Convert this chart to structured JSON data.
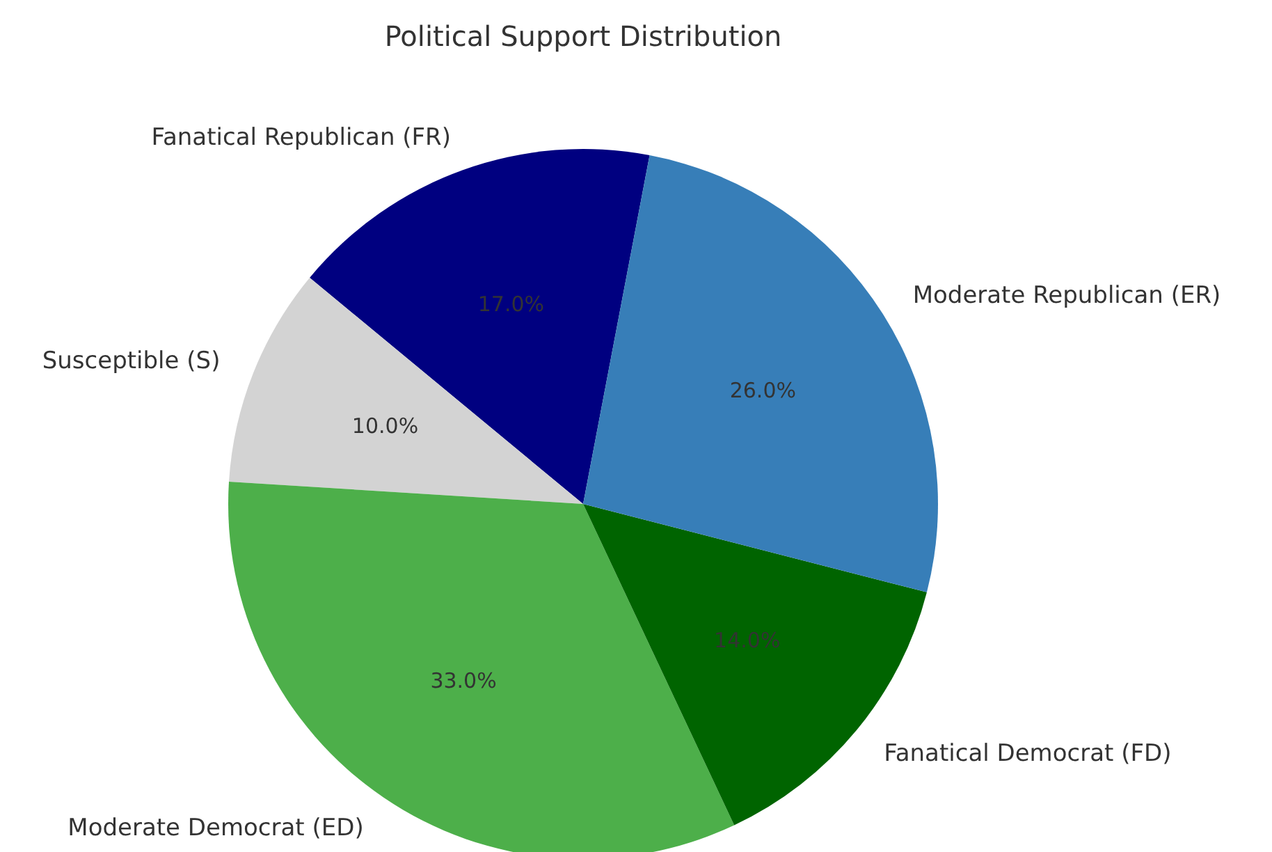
{
  "chart_data": {
    "type": "pie",
    "title": "Political Support Distribution",
    "categories": [
      "Fanatical Republican (FR)",
      "Susceptible (S)",
      "Moderate Democrat (ED)",
      "Fanatical Democrat (FD)",
      "Moderate Republican (ER)"
    ],
    "values": [
      17,
      10,
      33,
      14,
      26
    ],
    "colors": [
      "#000080",
      "#d3d3d3",
      "#4daf4a",
      "#006400",
      "#377eb8"
    ],
    "value_labels": [
      "17.0%",
      "10.0%",
      "33.0%",
      "14.0%",
      "26.0%"
    ]
  }
}
